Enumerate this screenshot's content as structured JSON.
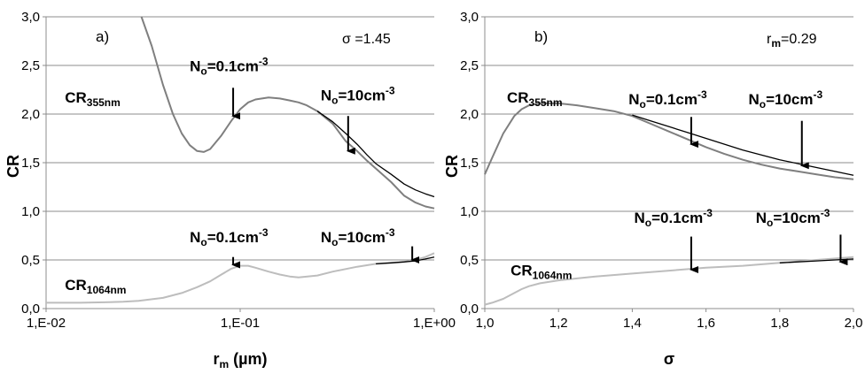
{
  "chart_data": [
    {
      "type": "line",
      "panel_label": "a)",
      "parameter": "σ =1.45",
      "xlabel": "r",
      "xlabel_sub": "m",
      "xlabel_unit": " (µm)",
      "ylabel": "CR",
      "xscale": "log",
      "xlim": [
        0.01,
        1.0
      ],
      "ylim": [
        0.0,
        3.0
      ],
      "xticks": [
        "1,E-02",
        "1,E-01",
        "1,E+00"
      ],
      "yticks": [
        "0,0",
        "0,5",
        "1,0",
        "1,5",
        "2,0",
        "2,5",
        "3,0"
      ],
      "grid": "horizontal",
      "series": [
        {
          "name": "CR355nm",
          "color": "#7f7f7f",
          "x": [
            0.031,
            0.035,
            0.04,
            0.045,
            0.05,
            0.055,
            0.06,
            0.065,
            0.07,
            0.08,
            0.09,
            0.1,
            0.11,
            0.12,
            0.14,
            0.16,
            0.18,
            0.2,
            0.22,
            0.25,
            0.3,
            0.35,
            0.4,
            0.45,
            0.5,
            0.6,
            0.7,
            0.8,
            0.9,
            1.0
          ],
          "y": [
            3.0,
            2.7,
            2.3,
            2.0,
            1.8,
            1.68,
            1.62,
            1.61,
            1.64,
            1.78,
            1.93,
            2.05,
            2.12,
            2.15,
            2.17,
            2.16,
            2.14,
            2.12,
            2.09,
            2.03,
            1.9,
            1.72,
            1.62,
            1.52,
            1.44,
            1.3,
            1.16,
            1.09,
            1.05,
            1.03
          ]
        },
        {
          "name": "Nₒ=10cm⁻³ (CR355nm)",
          "color": "#000000",
          "x": [
            0.25,
            0.3,
            0.35,
            0.4,
            0.45,
            0.5,
            0.6,
            0.7,
            0.8,
            0.9,
            1.0
          ],
          "y": [
            2.03,
            1.92,
            1.8,
            1.69,
            1.58,
            1.49,
            1.38,
            1.28,
            1.22,
            1.18,
            1.15
          ]
        },
        {
          "name": "CR1064nm",
          "color": "#bdbdbd",
          "x": [
            0.01,
            0.015,
            0.02,
            0.025,
            0.03,
            0.04,
            0.05,
            0.06,
            0.07,
            0.08,
            0.09,
            0.1,
            0.11,
            0.12,
            0.14,
            0.16,
            0.18,
            0.2,
            0.25,
            0.3,
            0.4,
            0.5,
            0.6,
            0.7,
            0.8,
            0.9,
            1.0
          ],
          "y": [
            0.06,
            0.06,
            0.065,
            0.07,
            0.08,
            0.11,
            0.16,
            0.22,
            0.28,
            0.35,
            0.41,
            0.44,
            0.44,
            0.42,
            0.38,
            0.35,
            0.33,
            0.32,
            0.34,
            0.38,
            0.43,
            0.46,
            0.47,
            0.48,
            0.5,
            0.53,
            0.57
          ]
        },
        {
          "name": "Nₒ=10cm⁻³ (CR1064nm)",
          "color": "#000000",
          "x": [
            0.5,
            0.6,
            0.7,
            0.8,
            0.9,
            1.0
          ],
          "y": [
            0.46,
            0.47,
            0.48,
            0.49,
            0.51,
            0.53
          ]
        }
      ],
      "labels": [
        {
          "text": "CR",
          "sub": "355nm",
          "x": 0.0125,
          "y": 2.12
        },
        {
          "text": "CR",
          "sub": "1064nm",
          "x": 0.0125,
          "y": 0.19
        }
      ],
      "annotations": [
        {
          "prefix": "N",
          "sub": "o",
          "body": "=0.1cm",
          "sup": "-3",
          "text_x": 0.055,
          "text_y": 2.44,
          "arrow_x": 0.092,
          "arrow_from": 2.27,
          "arrow_to": 1.98
        },
        {
          "prefix": "N",
          "sub": "o",
          "body": "=10cm",
          "sup": "-3",
          "text_x": 0.26,
          "text_y": 2.14,
          "arrow_x": 0.36,
          "arrow_from": 1.98,
          "arrow_to": 1.62
        },
        {
          "prefix": "N",
          "sub": "o",
          "body": "=0.1cm",
          "sup": "-3",
          "text_x": 0.055,
          "text_y": 0.68,
          "arrow_x": 0.092,
          "arrow_from": 0.53,
          "arrow_to": 0.45
        },
        {
          "prefix": "N",
          "sub": "o",
          "body": "=10cm",
          "sup": "-3",
          "text_x": 0.26,
          "text_y": 0.68,
          "arrow_x": 0.77,
          "arrow_from": 0.64,
          "arrow_to": 0.5
        }
      ]
    },
    {
      "type": "line",
      "panel_label": "b)",
      "parameter": "r",
      "parameter_sub": "m",
      "parameter_tail": "=0.29",
      "xlabel": "σ",
      "ylabel": "CR",
      "xscale": "linear",
      "xlim": [
        1.0,
        2.0
      ],
      "ylim": [
        0.0,
        3.0
      ],
      "xticks": [
        "1,0",
        "1,2",
        "1,4",
        "1,6",
        "1,8",
        "2,0"
      ],
      "yticks": [
        "0,0",
        "0,5",
        "1,0",
        "1,5",
        "2,0",
        "2,5",
        "3,0"
      ],
      "grid": "horizontal",
      "series": [
        {
          "name": "CR355nm",
          "color": "#7f7f7f",
          "x": [
            1.0,
            1.02,
            1.05,
            1.08,
            1.1,
            1.12,
            1.15,
            1.2,
            1.25,
            1.3,
            1.35,
            1.4,
            1.45,
            1.5,
            1.55,
            1.6,
            1.65,
            1.7,
            1.75,
            1.8,
            1.85,
            1.9,
            1.95,
            2.0
          ],
          "y": [
            1.38,
            1.55,
            1.8,
            1.98,
            2.05,
            2.09,
            2.11,
            2.11,
            2.09,
            2.06,
            2.03,
            1.98,
            1.9,
            1.82,
            1.74,
            1.66,
            1.59,
            1.53,
            1.48,
            1.44,
            1.41,
            1.38,
            1.35,
            1.33
          ]
        },
        {
          "name": "Nₒ=10cm⁻³ (CR355nm)",
          "color": "#000000",
          "x": [
            1.4,
            1.45,
            1.5,
            1.55,
            1.6,
            1.65,
            1.7,
            1.75,
            1.8,
            1.85,
            1.9,
            1.95,
            2.0
          ],
          "y": [
            1.99,
            1.93,
            1.87,
            1.81,
            1.75,
            1.69,
            1.63,
            1.58,
            1.53,
            1.49,
            1.45,
            1.41,
            1.37
          ]
        },
        {
          "name": "CR1064nm",
          "color": "#bdbdbd",
          "x": [
            1.0,
            1.02,
            1.05,
            1.08,
            1.1,
            1.12,
            1.15,
            1.2,
            1.25,
            1.3,
            1.4,
            1.5,
            1.6,
            1.7,
            1.8,
            1.9,
            2.0
          ],
          "y": [
            0.04,
            0.06,
            0.1,
            0.16,
            0.2,
            0.23,
            0.26,
            0.29,
            0.31,
            0.33,
            0.36,
            0.39,
            0.42,
            0.44,
            0.47,
            0.5,
            0.53
          ]
        },
        {
          "name": "Nₒ=10cm⁻³ (CR1064nm)",
          "color": "#000000",
          "x": [
            1.8,
            1.85,
            1.9,
            1.95,
            2.0
          ],
          "y": [
            0.47,
            0.48,
            0.49,
            0.5,
            0.51
          ]
        }
      ],
      "labels": [
        {
          "text": "CR",
          "sub": "355nm",
          "x": 1.06,
          "y": 2.12
        },
        {
          "text": "CR",
          "sub": "1064nm",
          "x": 1.07,
          "y": 0.34
        }
      ],
      "annotations": [
        {
          "prefix": "N",
          "sub": "o",
          "body": "=0.1cm",
          "sup": "-3",
          "text_x": 1.39,
          "text_y": 2.1,
          "arrow_x": 1.56,
          "arrow_from": 1.97,
          "arrow_to": 1.69
        },
        {
          "prefix": "N",
          "sub": "o",
          "body": "=10cm",
          "sup": "-3",
          "text_x": 1.715,
          "text_y": 2.1,
          "arrow_x": 1.86,
          "arrow_from": 1.93,
          "arrow_to": 1.47
        },
        {
          "prefix": "N",
          "sub": "o",
          "body": "=0.1cm",
          "sup": "-3",
          "text_x": 1.405,
          "text_y": 0.88,
          "arrow_x": 1.56,
          "arrow_from": 0.74,
          "arrow_to": 0.4
        },
        {
          "prefix": "N",
          "sub": "o",
          "body": "=10cm",
          "sup": "-3",
          "text_x": 1.735,
          "text_y": 0.88,
          "arrow_x": 1.965,
          "arrow_from": 0.76,
          "arrow_to": 0.48
        }
      ]
    }
  ]
}
